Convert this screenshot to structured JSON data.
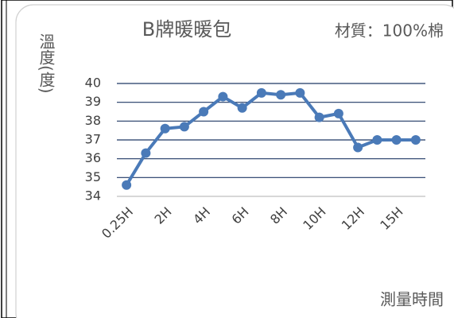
{
  "chart_data": {
    "type": "line",
    "title": "B牌暖暖包",
    "annotation": "材質：100%棉",
    "y_label": "溫度(度)",
    "x_label": "測量時間",
    "categories": [
      "0.25H",
      null,
      "2H",
      null,
      "4H",
      null,
      "6H",
      null,
      "8H",
      null,
      "10H",
      null,
      "12H",
      null,
      "15H",
      null
    ],
    "series": [
      {
        "name": "B牌暖暖包",
        "color": "#4a7ab8",
        "values": [
          34.6,
          36.3,
          37.6,
          37.7,
          38.5,
          39.3,
          38.7,
          39.5,
          39.4,
          39.5,
          38.2,
          38.4,
          36.6,
          37.0,
          37.0,
          37.0
        ]
      }
    ],
    "ylim": [
      34,
      40
    ],
    "yticks": [
      34,
      35,
      36,
      37,
      38,
      39,
      40
    ],
    "grid": true,
    "grid_color": "#1f3864"
  }
}
